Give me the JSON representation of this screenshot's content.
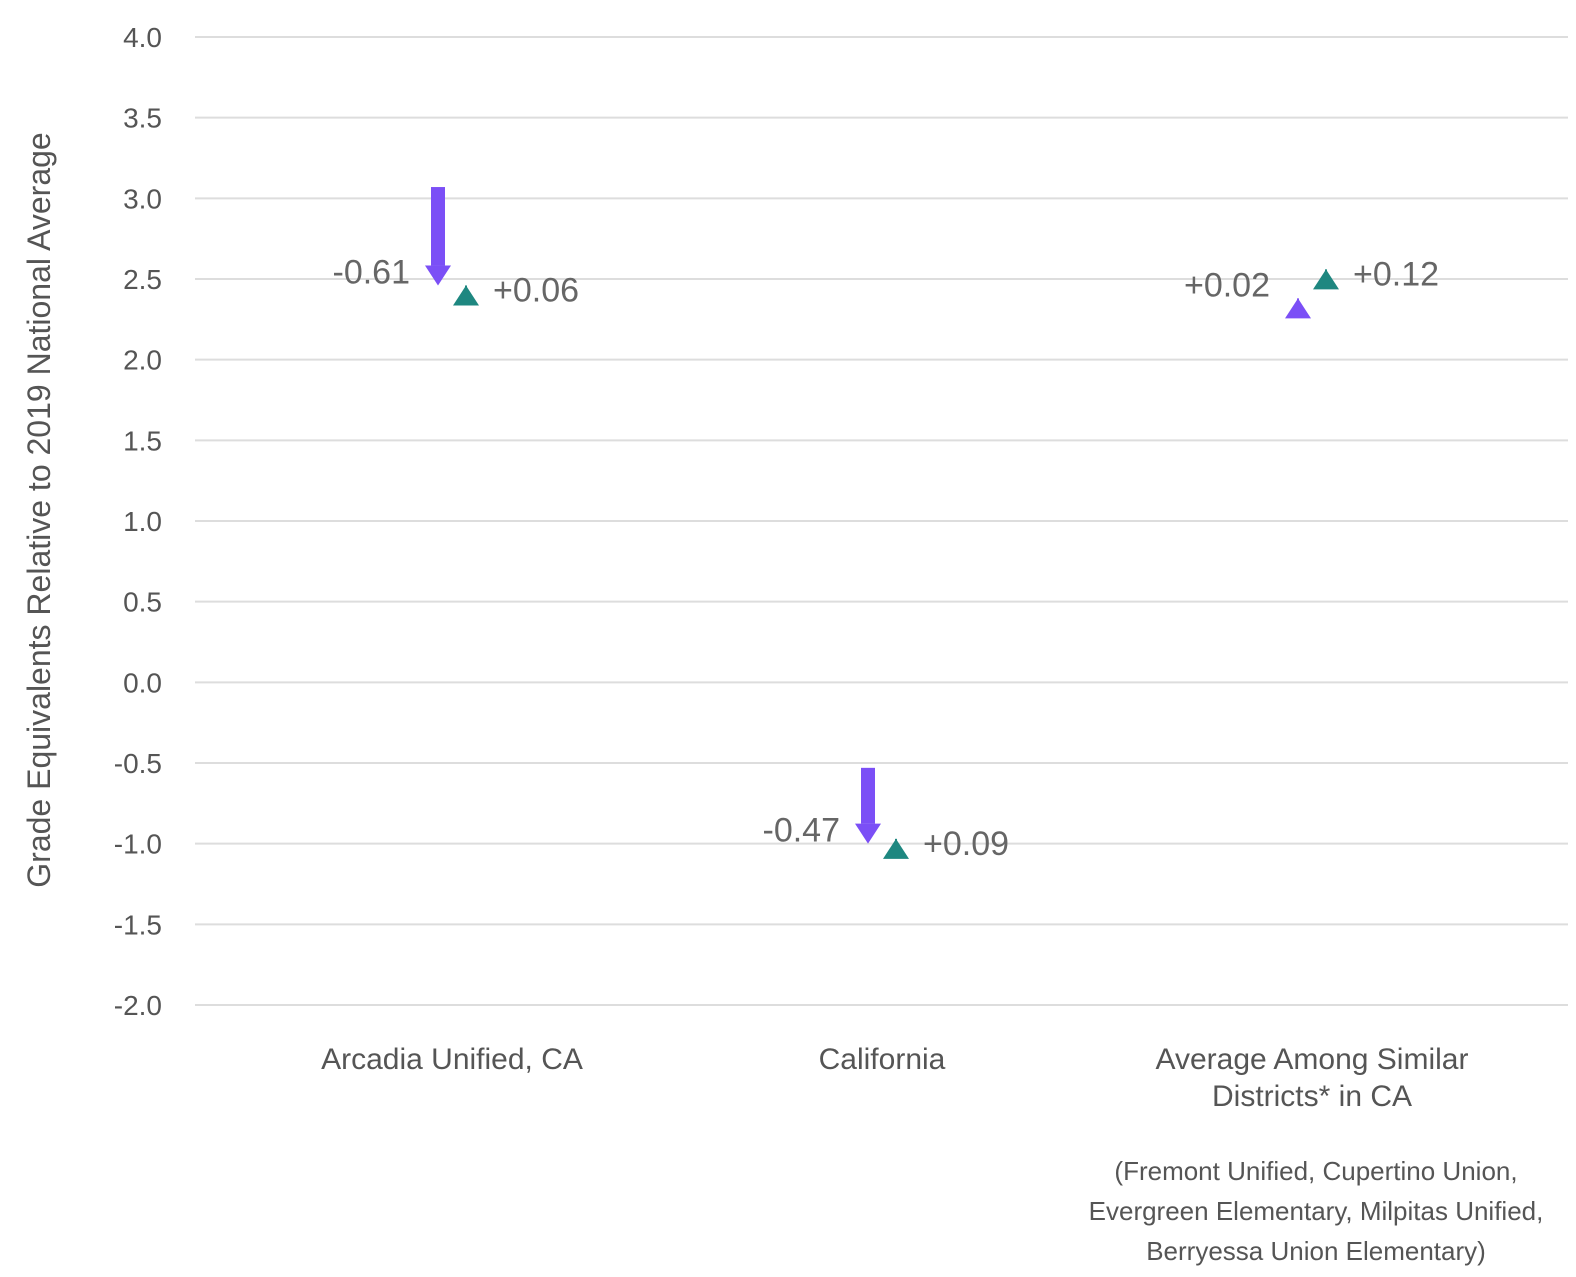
{
  "chart_data": {
    "type": "scatter",
    "ylabel": "Grade Equivalents Relative to 2019 National Average",
    "ylim": [
      -2.0,
      4.0
    ],
    "yticks": [
      "4.0",
      "3.5",
      "3.0",
      "2.5",
      "2.0",
      "1.5",
      "1.0",
      "0.5",
      "0.0",
      "-0.5",
      "-1.0",
      "-1.5",
      "-2.0"
    ],
    "grid": true,
    "categories": [
      {
        "label_lines": [
          "Arcadia Unified, CA"
        ],
        "change1": {
          "start": 3.07,
          "end": 2.46,
          "label": "-0.61"
        },
        "change2": {
          "start": 2.4,
          "end": 2.46,
          "label": "+0.06"
        }
      },
      {
        "label_lines": [
          "California"
        ],
        "change1": {
          "start": -0.53,
          "end": -1.0,
          "label": "-0.47"
        },
        "change2": {
          "start": -1.06,
          "end": -0.97,
          "label": "+0.09"
        }
      },
      {
        "label_lines": [
          "Average Among Similar",
          "Districts* in CA"
        ],
        "change1": {
          "start": 2.36,
          "end": 2.38,
          "label": "+0.02"
        },
        "change2": {
          "start": 2.44,
          "end": 2.56,
          "label": "+0.12"
        }
      }
    ],
    "footnote_lines": [
      "(Fremont Unified, Cupertino Union,",
      "Evergreen Elementary, Milpitas Unified,",
      "Berryessa Union Elementary)"
    ],
    "colors": {
      "change1": "#7b4ff6",
      "change2": "#1e8780",
      "grid": "#dddddd",
      "tick_text": "#555555",
      "value_text": "#666666"
    }
  }
}
